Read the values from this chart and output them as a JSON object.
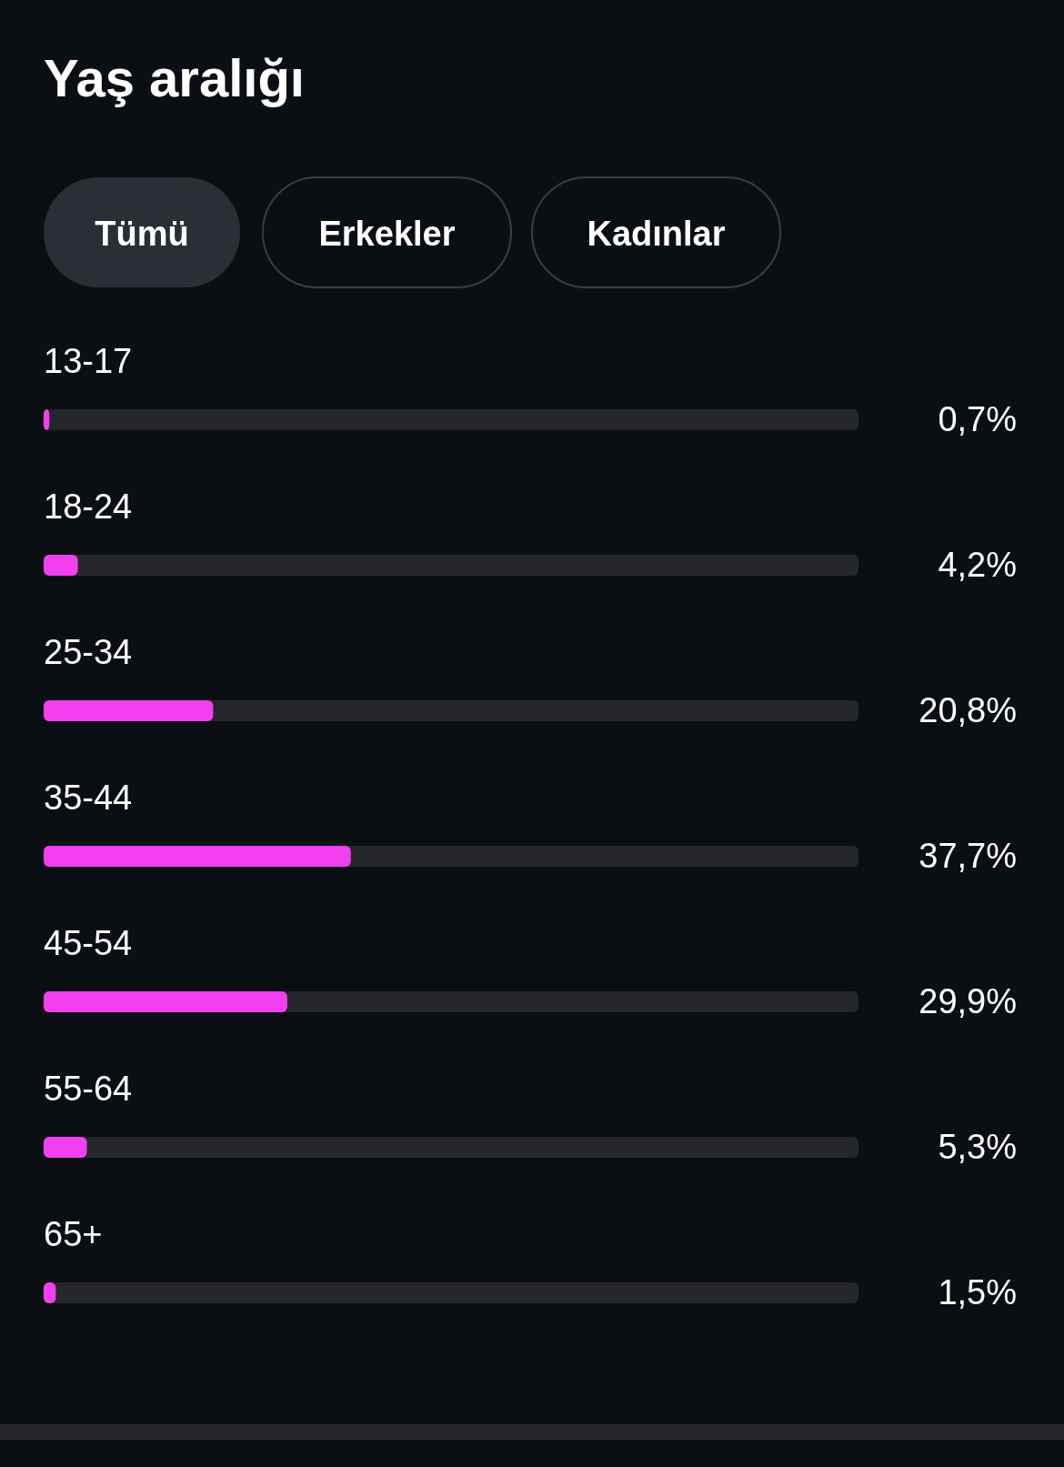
{
  "chart_data": {
    "type": "bar",
    "orientation": "horizontal",
    "title": "Yaş aralığı",
    "annotations": [
      "Tümü",
      "Erkekler",
      "Kadınlar"
    ],
    "categories": [
      "13-17",
      "18-24",
      "25-34",
      "35-44",
      "45-54",
      "55-64",
      "65+"
    ],
    "values": [
      0.7,
      4.2,
      20.8,
      37.7,
      29.9,
      5.3,
      1.5
    ],
    "value_labels": [
      "0,7%",
      "4,2%",
      "20,8%",
      "37,7%",
      "29,9%",
      "5,3%",
      "1,5%"
    ],
    "color": "#f23ff0",
    "xlim": [
      0,
      100
    ]
  }
}
